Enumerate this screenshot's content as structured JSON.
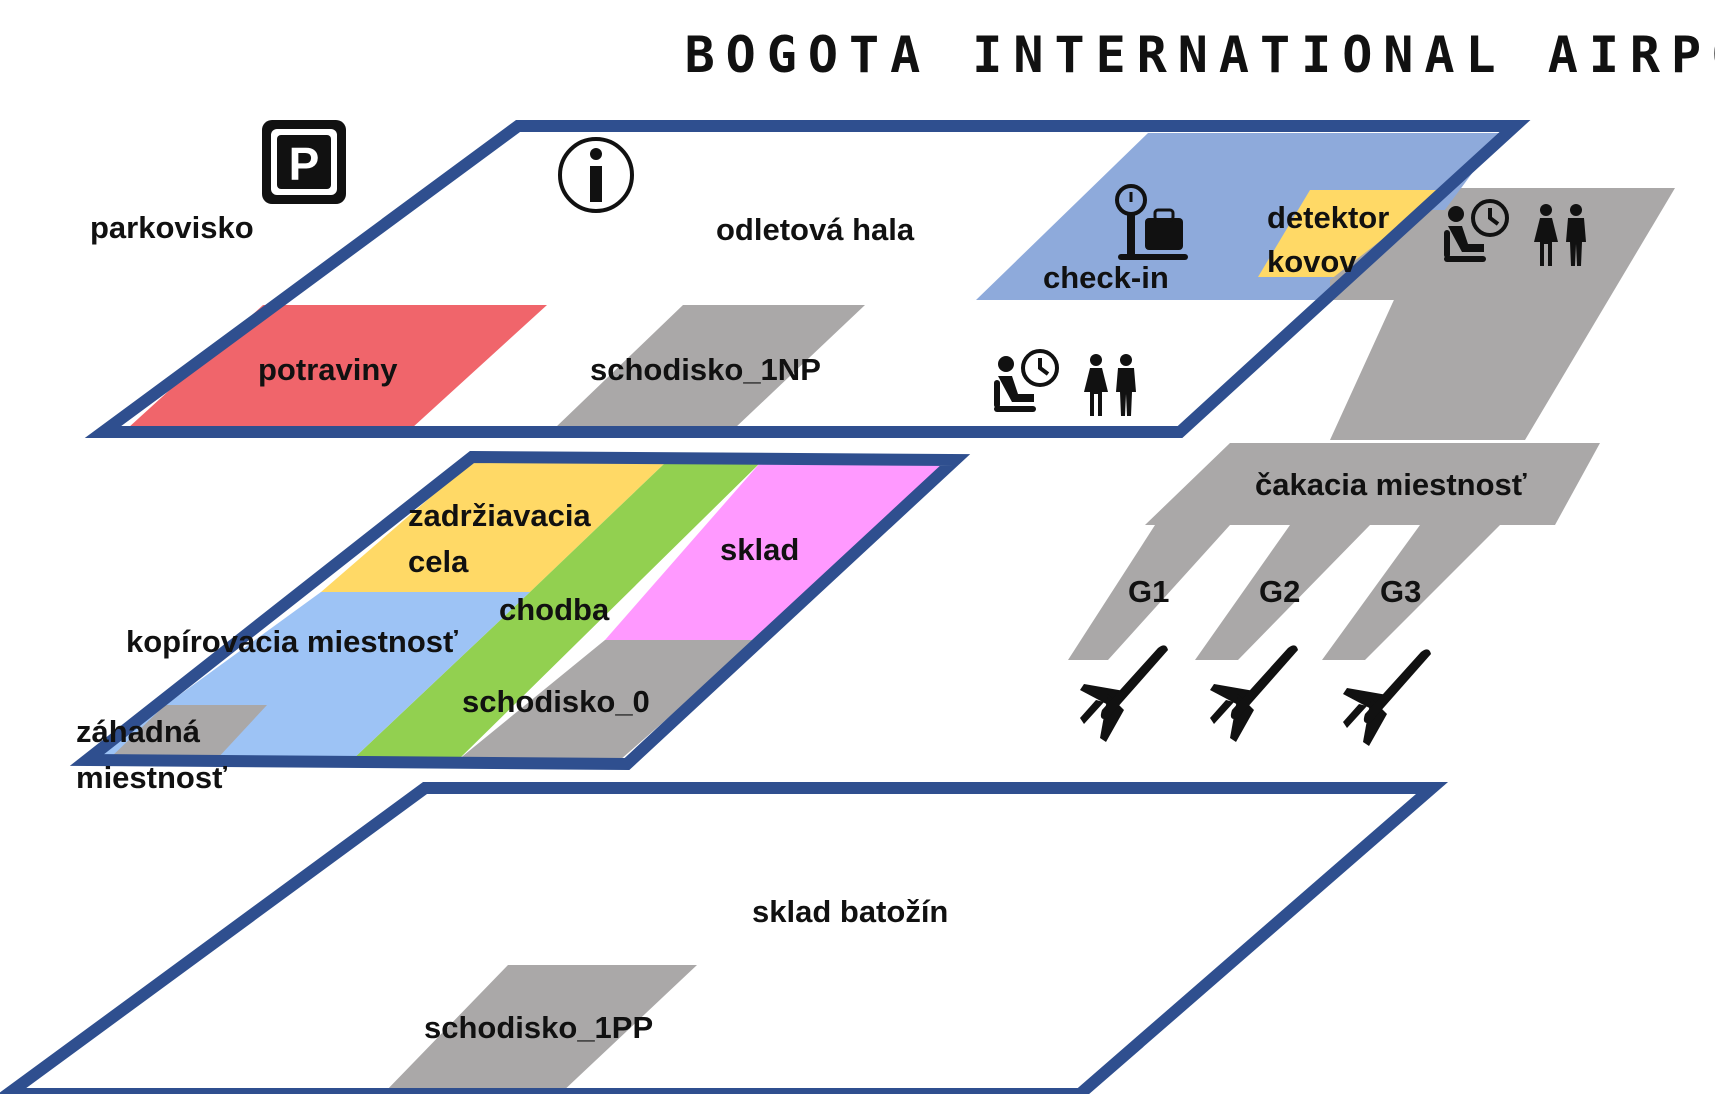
{
  "title": "BOGOTA INTERNATIONAL AIRPORT",
  "colors": {
    "outline": "#2f4f8f",
    "corridor_gray": "#aaa8a8",
    "food_red": "#f0656b",
    "checkin_blue": "#8eaadb",
    "detector_yellow": "#ffd966",
    "cell_yellow": "#ffd966",
    "hall_green": "#92d050",
    "storage_pink": "#ff99ff",
    "copy_room_blue": "#9dc3f5"
  },
  "icons": {
    "parking": "parking-icon",
    "info": "info-icon",
    "checkin": "luggage-scale-icon",
    "waiting": "waiting-room-icon",
    "restroom": "restroom-icon",
    "airplane": "airplane-icon"
  },
  "upper_floor": {
    "parking": "parkovisko",
    "hall": "odletová hala",
    "food": "potraviny",
    "stairs": "schodisko_1NP",
    "checkin": "check-in",
    "detector_line1": "detektor",
    "detector_line2": "kovov"
  },
  "middle_floor": {
    "cell_line1": "zadržiavacia",
    "cell_line2": "cela",
    "storage": "sklad",
    "corridor": "chodba",
    "copy_room": "kopírovacia miestnosť",
    "stairs": "schodisko_0",
    "mystery_line1": "záhadná",
    "mystery_line2": "miestnosť"
  },
  "lower_floor": {
    "baggage": "sklad batožín",
    "stairs": "schodisko_1PP"
  },
  "terminal": {
    "waiting_room": "čakacia miestnosť",
    "gates": [
      "G1",
      "G2",
      "G3"
    ]
  }
}
